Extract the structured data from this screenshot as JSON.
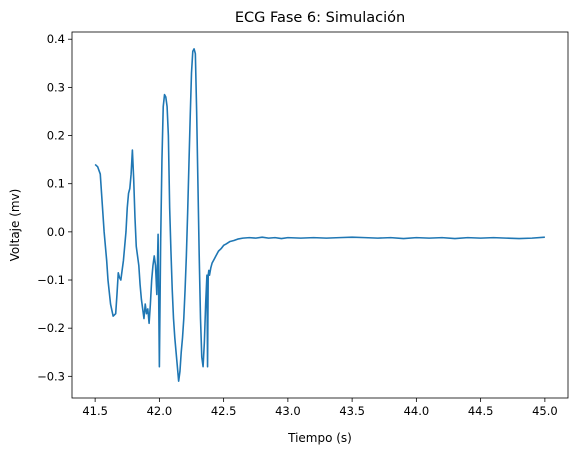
{
  "chart_data": {
    "type": "line",
    "title": "ECG Fase 6: Simulación",
    "xlabel": "Tiempo (s)",
    "ylabel": "Voltaje (mv)",
    "xlim": [
      41.32,
      45.18
    ],
    "ylim": [
      -0.345,
      0.415
    ],
    "xticks": [
      41.5,
      42.0,
      42.5,
      43.0,
      43.5,
      44.0,
      44.5,
      45.0
    ],
    "xtick_labels": [
      "41.5",
      "42.0",
      "42.5",
      "43.0",
      "43.5",
      "44.0",
      "44.5",
      "45.0"
    ],
    "yticks": [
      -0.3,
      -0.2,
      -0.1,
      0.0,
      0.1,
      0.2,
      0.3,
      0.4
    ],
    "ytick_labels": [
      "−0.3",
      "−0.2",
      "−0.1",
      "0.0",
      "0.1",
      "0.2",
      "0.3",
      "0.4"
    ],
    "grid": false,
    "line_color": "#1f77b4",
    "series": [
      {
        "x": [
          41.5,
          41.52,
          41.54,
          41.55,
          41.57,
          41.59,
          41.6,
          41.62,
          41.64,
          41.66,
          41.67,
          41.68,
          41.69,
          41.7,
          41.71,
          41.72,
          41.74,
          41.75,
          41.76,
          41.77,
          41.78,
          41.79,
          41.8,
          41.81,
          41.82,
          41.84,
          41.85,
          41.86,
          41.87,
          41.88,
          41.89,
          41.9,
          41.91,
          41.92,
          41.93,
          41.94,
          41.95,
          41.96,
          41.97,
          41.98,
          41.99,
          42.0,
          42.01,
          42.02,
          42.03,
          42.04,
          42.05,
          42.06,
          42.07,
          42.08,
          42.09,
          42.1,
          42.11,
          42.12,
          42.13,
          42.14,
          42.15,
          42.16,
          42.17,
          42.18,
          42.19,
          42.2,
          42.21,
          42.22,
          42.23,
          42.24,
          42.25,
          42.26,
          42.27,
          42.28,
          42.29,
          42.3,
          42.31,
          42.32,
          42.33,
          42.34,
          42.35,
          42.36,
          42.37,
          42.375,
          42.38,
          42.385,
          42.39,
          42.4,
          42.41,
          42.42,
          42.43,
          42.44,
          42.45,
          42.46,
          42.48,
          42.5,
          42.52,
          42.55,
          42.58,
          42.61,
          42.65,
          42.7,
          42.75,
          42.8,
          42.85,
          42.9,
          42.95,
          43.0,
          43.1,
          43.2,
          43.3,
          43.4,
          43.5,
          43.6,
          43.7,
          43.8,
          43.9,
          44.0,
          44.1,
          44.2,
          44.3,
          44.4,
          44.5,
          44.6,
          44.7,
          44.8,
          44.9,
          45.0
        ],
        "y": [
          0.14,
          0.135,
          0.12,
          0.08,
          0.0,
          -0.06,
          -0.1,
          -0.15,
          -0.175,
          -0.17,
          -0.13,
          -0.085,
          -0.095,
          -0.1,
          -0.08,
          -0.06,
          0.0,
          0.05,
          0.08,
          0.09,
          0.12,
          0.17,
          0.11,
          0.03,
          -0.03,
          -0.07,
          -0.11,
          -0.14,
          -0.16,
          -0.18,
          -0.15,
          -0.17,
          -0.16,
          -0.19,
          -0.15,
          -0.1,
          -0.07,
          -0.05,
          -0.07,
          -0.13,
          -0.005,
          -0.28,
          -0.02,
          0.15,
          0.26,
          0.285,
          0.28,
          0.26,
          0.2,
          0.05,
          -0.04,
          -0.12,
          -0.18,
          -0.22,
          -0.25,
          -0.28,
          -0.31,
          -0.29,
          -0.25,
          -0.22,
          -0.18,
          -0.12,
          -0.05,
          0.04,
          0.14,
          0.24,
          0.33,
          0.375,
          0.38,
          0.37,
          0.25,
          0.1,
          -0.05,
          -0.18,
          -0.26,
          -0.28,
          -0.23,
          -0.15,
          -0.09,
          -0.28,
          -0.09,
          -0.08,
          -0.09,
          -0.075,
          -0.065,
          -0.06,
          -0.055,
          -0.05,
          -0.045,
          -0.04,
          -0.035,
          -0.028,
          -0.025,
          -0.02,
          -0.018,
          -0.015,
          -0.013,
          -0.012,
          -0.013,
          -0.011,
          -0.013,
          -0.012,
          -0.014,
          -0.012,
          -0.013,
          -0.012,
          -0.013,
          -0.012,
          -0.011,
          -0.012,
          -0.013,
          -0.012,
          -0.014,
          -0.012,
          -0.013,
          -0.012,
          -0.014,
          -0.012,
          -0.013,
          -0.012,
          -0.013,
          -0.014,
          -0.013,
          -0.011
        ]
      }
    ]
  }
}
